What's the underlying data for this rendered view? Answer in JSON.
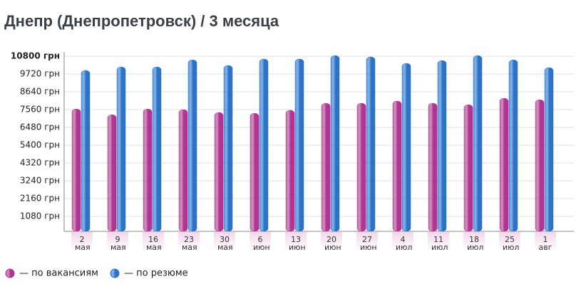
{
  "chart_data": {
    "type": "bar",
    "title": "Днепр (Днепропетровск) / 3 месяца",
    "categories": [
      "2 мая",
      "9 мая",
      "16 мая",
      "23 мая",
      "30 мая",
      "6 июн",
      "13 июн",
      "20 июн",
      "27 июн",
      "4 июл",
      "11 июл",
      "18 июл",
      "25 июл",
      "1 авг"
    ],
    "series": [
      {
        "name": "— по вакансиям",
        "color": "#b0358f",
        "values": [
          7600,
          7250,
          7600,
          7560,
          7390,
          7340,
          7520,
          7950,
          7950,
          8080,
          7950,
          7860,
          8250,
          8160
        ]
      },
      {
        "name": "— по резюме",
        "color": "#2a73c8",
        "values": [
          9940,
          10150,
          10150,
          10580,
          10240,
          10630,
          10630,
          10840,
          10760,
          10370,
          10540,
          10840,
          10580,
          10110
        ]
      }
    ],
    "ylim": [
      0,
      10800
    ],
    "yticks": [
      {
        "value": 1080,
        "label": "1080 грн"
      },
      {
        "value": 2160,
        "label": "2160 грн"
      },
      {
        "value": 3240,
        "label": "3240 грн"
      },
      {
        "value": 4320,
        "label": "4320 грн"
      },
      {
        "value": 5400,
        "label": "5400 грн"
      },
      {
        "value": 6480,
        "label": "6480 грн"
      },
      {
        "value": 7560,
        "label": "7560 грн"
      },
      {
        "value": 8640,
        "label": "8640 грн"
      },
      {
        "value": 9720,
        "label": "9720 грн"
      },
      {
        "value": 10800,
        "label": "10800 грн"
      }
    ],
    "grid": true
  }
}
